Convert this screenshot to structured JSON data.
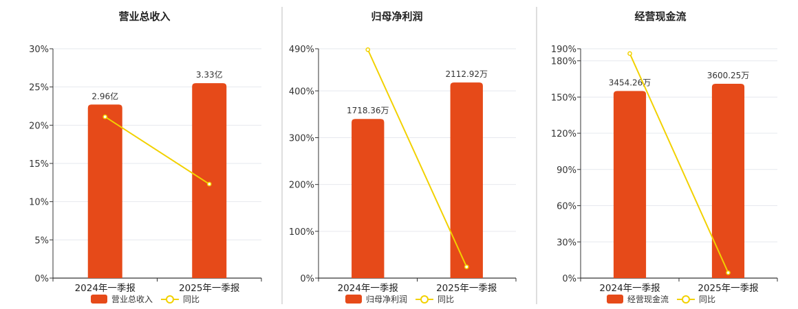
{
  "colors": {
    "bar": "#E64A19",
    "line": "#F2D100",
    "grid": "#E6E8EE",
    "axis": "#333333",
    "divider": "#BDBDBD"
  },
  "chart_data": [
    {
      "type": "bar",
      "title": "营业总收入",
      "categories": [
        "2024年一季报",
        "2025年一季报"
      ],
      "ylim": [
        0,
        30
      ],
      "yticks": [
        "0%",
        "5%",
        "10%",
        "15%",
        "20%",
        "25%",
        "30%"
      ],
      "series": [
        {
          "name": "营业总收入",
          "type": "bar",
          "axis_values": [
            22.7,
            25.5
          ],
          "labels": [
            "2.96亿",
            "3.33亿"
          ]
        },
        {
          "name": "同比",
          "type": "line",
          "values": [
            21.1,
            12.3
          ]
        }
      ]
    },
    {
      "type": "bar",
      "title": "归母净利润",
      "categories": [
        "2024年一季报",
        "2025年一季报"
      ],
      "ylim": [
        0,
        490
      ],
      "yticks": [
        "0%",
        "100%",
        "200%",
        "300%",
        "400%",
        "490%"
      ],
      "series": [
        {
          "name": "归母净利润",
          "type": "bar",
          "axis_values": [
            340,
            418
          ],
          "labels": [
            "1718.36万",
            "2112.92万"
          ]
        },
        {
          "name": "同比",
          "type": "line",
          "values": [
            488,
            24
          ]
        }
      ]
    },
    {
      "type": "bar",
      "title": "经营现金流",
      "categories": [
        "2024年一季报",
        "2025年一季报"
      ],
      "ylim": [
        0,
        190
      ],
      "yticks": [
        "0%",
        "30%",
        "60%",
        "90%",
        "120%",
        "150%",
        "180%",
        "190%"
      ],
      "series": [
        {
          "name": "经营现金流",
          "type": "bar",
          "axis_values": [
            155,
            161
          ],
          "labels": [
            "3454.26万",
            "3600.25万"
          ]
        },
        {
          "name": "同比",
          "type": "line",
          "values": [
            186,
            4.5
          ]
        }
      ]
    }
  ]
}
